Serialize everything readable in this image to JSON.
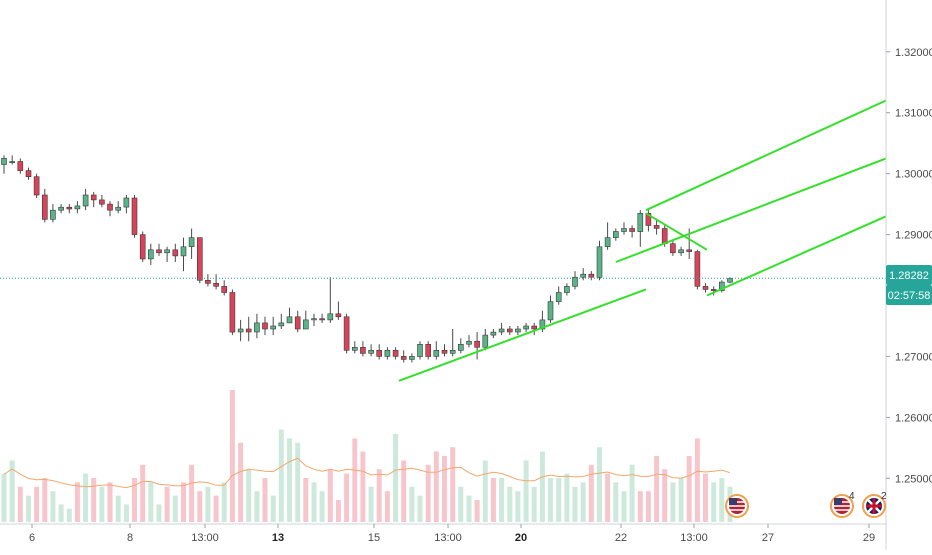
{
  "chart_data": {
    "type": "candlestick",
    "y_axis": {
      "ticks": [
        "1.32000",
        "1.31000",
        "1.30000",
        "1.29000",
        "1.28000",
        "1.27000",
        "1.26000",
        "1.25000"
      ],
      "tick_values": [
        1.32,
        1.31,
        1.3,
        1.29,
        1.28,
        1.27,
        1.26,
        1.25
      ],
      "range": [
        1.2425,
        1.3285
      ]
    },
    "x_axis": {
      "labels": [
        "6",
        "8",
        "13:00",
        "13",
        "15",
        "13:00",
        "20",
        "22",
        "13:00",
        "27",
        "29"
      ],
      "bold_labels": [
        "13",
        "20"
      ]
    },
    "last_price": {
      "value": "1.28282",
      "level": 1.28282,
      "color": "#26a69a"
    },
    "countdown": {
      "value": "02:57:58",
      "color": "#26a69a"
    },
    "up_color": "#5bb389",
    "down_color": "#d9435a",
    "pitchfork_color": "#33e02a",
    "volume_ma_color": "#f3a76b",
    "candles": [
      [
        1.3015,
        1.3025,
        1.303,
        1.3
      ],
      [
        1.302,
        1.302,
        1.303,
        1.3015
      ],
      [
        1.302,
        1.3005,
        1.3025,
        1.3
      ],
      [
        1.3005,
        1.2995,
        1.301,
        1.299
      ],
      [
        1.2995,
        1.2965,
        1.3,
        1.296
      ],
      [
        1.2965,
        1.2925,
        1.2975,
        1.292
      ],
      [
        1.2925,
        1.294,
        1.295,
        1.292
      ],
      [
        1.294,
        1.2945,
        1.295,
        1.2935
      ],
      [
        1.2945,
        1.2942,
        1.295,
        1.2935
      ],
      [
        1.2942,
        1.2947,
        1.2955,
        1.2935
      ],
      [
        1.2947,
        1.2965,
        1.2975,
        1.294
      ],
      [
        1.2965,
        1.2957,
        1.297,
        1.2945
      ],
      [
        1.2957,
        1.295,
        1.2965,
        1.2945
      ],
      [
        1.295,
        1.294,
        1.2955,
        1.293
      ],
      [
        1.294,
        1.2945,
        1.2955,
        1.2935
      ],
      [
        1.2945,
        1.296,
        1.2965,
        1.2935
      ],
      [
        1.296,
        1.29,
        1.2965,
        1.2895
      ],
      [
        1.29,
        1.286,
        1.2905,
        1.2855
      ],
      [
        1.286,
        1.2875,
        1.2885,
        1.285
      ],
      [
        1.2875,
        1.287,
        1.2885,
        1.2865
      ],
      [
        1.287,
        1.2875,
        1.288,
        1.2855
      ],
      [
        1.2875,
        1.2865,
        1.2885,
        1.2855
      ],
      [
        1.2865,
        1.288,
        1.2895,
        1.284
      ],
      [
        1.288,
        1.2895,
        1.291,
        1.286
      ],
      [
        1.2895,
        1.2825,
        1.2895,
        1.282
      ],
      [
        1.2825,
        1.282,
        1.2835,
        1.2815
      ],
      [
        1.282,
        1.2815,
        1.2835,
        1.281
      ],
      [
        1.2815,
        1.2805,
        1.2825,
        1.28
      ],
      [
        1.2805,
        1.274,
        1.281,
        1.2735
      ],
      [
        1.274,
        1.2745,
        1.276,
        1.2725
      ],
      [
        1.2745,
        1.274,
        1.2765,
        1.2725
      ],
      [
        1.274,
        1.2755,
        1.277,
        1.273
      ],
      [
        1.2755,
        1.2745,
        1.2765,
        1.2735
      ],
      [
        1.2745,
        1.275,
        1.2765,
        1.2735
      ],
      [
        1.275,
        1.2755,
        1.277,
        1.2745
      ],
      [
        1.2755,
        1.2765,
        1.278,
        1.2755
      ],
      [
        1.2765,
        1.2745,
        1.2775,
        1.274
      ],
      [
        1.2745,
        1.276,
        1.2775,
        1.2745
      ],
      [
        1.276,
        1.2762,
        1.277,
        1.275
      ],
      [
        1.2762,
        1.276,
        1.277,
        1.2755
      ],
      [
        1.276,
        1.277,
        1.283,
        1.2755
      ],
      [
        1.277,
        1.2765,
        1.279,
        1.276
      ],
      [
        1.2765,
        1.271,
        1.277,
        1.2705
      ],
      [
        1.271,
        1.2715,
        1.2725,
        1.2705
      ],
      [
        1.2715,
        1.2705,
        1.2725,
        1.27
      ],
      [
        1.2705,
        1.271,
        1.272,
        1.27
      ],
      [
        1.271,
        1.27,
        1.272,
        1.2695
      ],
      [
        1.27,
        1.271,
        1.2715,
        1.2695
      ],
      [
        1.271,
        1.27,
        1.2715,
        1.2695
      ],
      [
        1.27,
        1.2695,
        1.271,
        1.269
      ],
      [
        1.2695,
        1.27,
        1.2705,
        1.269
      ],
      [
        1.27,
        1.272,
        1.2725,
        1.2695
      ],
      [
        1.272,
        1.27,
        1.2725,
        1.2695
      ],
      [
        1.27,
        1.271,
        1.2725,
        1.2695
      ],
      [
        1.271,
        1.2705,
        1.272,
        1.27
      ],
      [
        1.2705,
        1.271,
        1.2745,
        1.27
      ],
      [
        1.271,
        1.272,
        1.273,
        1.2705
      ],
      [
        1.272,
        1.2725,
        1.2735,
        1.2715
      ],
      [
        1.2725,
        1.2715,
        1.274,
        1.2695
      ],
      [
        1.2715,
        1.2735,
        1.2745,
        1.271
      ],
      [
        1.2735,
        1.274,
        1.2745,
        1.273
      ],
      [
        1.274,
        1.2745,
        1.2755,
        1.2735
      ],
      [
        1.2745,
        1.274,
        1.275,
        1.2735
      ],
      [
        1.274,
        1.2745,
        1.275,
        1.2735
      ],
      [
        1.2745,
        1.275,
        1.2755,
        1.274
      ],
      [
        1.275,
        1.2745,
        1.2755,
        1.2735
      ],
      [
        1.2745,
        1.276,
        1.2775,
        1.274
      ],
      [
        1.276,
        1.279,
        1.28,
        1.2755
      ],
      [
        1.279,
        1.2805,
        1.2815,
        1.2785
      ],
      [
        1.2805,
        1.2815,
        1.282,
        1.28
      ],
      [
        1.2815,
        1.283,
        1.284,
        1.281
      ],
      [
        1.283,
        1.2835,
        1.2845,
        1.2825
      ],
      [
        1.2835,
        1.283,
        1.284,
        1.2825
      ],
      [
        1.283,
        1.288,
        1.289,
        1.2825
      ],
      [
        1.288,
        1.2895,
        1.292,
        1.2875
      ],
      [
        1.2895,
        1.2905,
        1.291,
        1.289
      ],
      [
        1.2905,
        1.291,
        1.292,
        1.29
      ],
      [
        1.291,
        1.2905,
        1.2915,
        1.2895
      ],
      [
        1.2905,
        1.2935,
        1.294,
        1.288
      ],
      [
        1.2935,
        1.2915,
        1.294,
        1.2905
      ],
      [
        1.2915,
        1.291,
        1.2925,
        1.29
      ],
      [
        1.291,
        1.2885,
        1.2915,
        1.288
      ],
      [
        1.2885,
        1.287,
        1.289,
        1.2865
      ],
      [
        1.287,
        1.2875,
        1.288,
        1.2865
      ],
      [
        1.2875,
        1.2872,
        1.291,
        1.286
      ],
      [
        1.2872,
        1.2815,
        1.2875,
        1.281
      ],
      [
        1.2815,
        1.281,
        1.282,
        1.2805
      ],
      [
        1.281,
        1.2808,
        1.2815,
        1.28
      ],
      [
        1.2808,
        1.2822,
        1.2825,
        1.2805
      ],
      [
        1.2822,
        1.2828,
        1.283,
        1.282
      ]
    ],
    "volume": [
      [
        11,
        "u"
      ],
      [
        14,
        "u"
      ],
      [
        8,
        "d"
      ],
      [
        6,
        "u"
      ],
      [
        8,
        "d"
      ],
      [
        10,
        "d"
      ],
      [
        7,
        "u"
      ],
      [
        4,
        "u"
      ],
      [
        3,
        "u"
      ],
      [
        9,
        "d"
      ],
      [
        11,
        "u"
      ],
      [
        10,
        "d"
      ],
      [
        8,
        "u"
      ],
      [
        9,
        "d"
      ],
      [
        6,
        "u"
      ],
      [
        4,
        "u"
      ],
      [
        10,
        "d"
      ],
      [
        13,
        "d"
      ],
      [
        9,
        "u"
      ],
      [
        4,
        "u"
      ],
      [
        8,
        "d"
      ],
      [
        6,
        "u"
      ],
      [
        9,
        "d"
      ],
      [
        13,
        "d"
      ],
      [
        7,
        "d"
      ],
      [
        8,
        "u"
      ],
      [
        6,
        "d"
      ],
      [
        9,
        "u"
      ],
      [
        30,
        "d"
      ],
      [
        18,
        "d"
      ],
      [
        12,
        "u"
      ],
      [
        7,
        "u"
      ],
      [
        10,
        "d"
      ],
      [
        6,
        "u"
      ],
      [
        21,
        "u"
      ],
      [
        19,
        "u"
      ],
      [
        18,
        "u"
      ],
      [
        10,
        "d"
      ],
      [
        9,
        "u"
      ],
      [
        7,
        "u"
      ],
      [
        12,
        "d"
      ],
      [
        5,
        "d"
      ],
      [
        11,
        "d"
      ],
      [
        19,
        "d"
      ],
      [
        16,
        "d"
      ],
      [
        8,
        "u"
      ],
      [
        12,
        "d"
      ],
      [
        7,
        "d"
      ],
      [
        20,
        "u"
      ],
      [
        14,
        "d"
      ],
      [
        8,
        "u"
      ],
      [
        6,
        "u"
      ],
      [
        13,
        "d"
      ],
      [
        16,
        "d"
      ],
      [
        15,
        "d"
      ],
      [
        17,
        "d"
      ],
      [
        8,
        "u"
      ],
      [
        6,
        "u"
      ],
      [
        5,
        "d"
      ],
      [
        14,
        "u"
      ],
      [
        10,
        "d"
      ],
      [
        10,
        "u"
      ],
      [
        8,
        "u"
      ],
      [
        7,
        "u"
      ],
      [
        14,
        "u"
      ],
      [
        8,
        "u"
      ],
      [
        16,
        "u"
      ],
      [
        10,
        "u"
      ],
      [
        10,
        "u"
      ],
      [
        11,
        "u"
      ],
      [
        8,
        "u"
      ],
      [
        9,
        "u"
      ],
      [
        13,
        "d"
      ],
      [
        17,
        "u"
      ],
      [
        11,
        "d"
      ],
      [
        9,
        "u"
      ],
      [
        7,
        "u"
      ],
      [
        13,
        "u"
      ],
      [
        7,
        "d"
      ],
      [
        7,
        "d"
      ],
      [
        15,
        "d"
      ],
      [
        12,
        "d"
      ],
      [
        9,
        "u"
      ],
      [
        10,
        "u"
      ],
      [
        15,
        "d"
      ],
      [
        19,
        "d"
      ],
      [
        11,
        "d"
      ],
      [
        9,
        "u"
      ],
      [
        10,
        "u"
      ],
      [
        8,
        "u"
      ]
    ],
    "pitchfork": {
      "pivot": [
        0,
        1.2935
      ],
      "handle_end": [
        0,
        1.2875
      ],
      "lines": [
        {
          "name": "upper",
          "from": [
            0,
            1.294
          ],
          "to": [
            1,
            1.312
          ]
        },
        {
          "name": "median",
          "from": [
            0,
            1.2855
          ],
          "to": [
            1,
            1.3025
          ]
        },
        {
          "name": "lower",
          "from": [
            0,
            1.28
          ],
          "to": [
            1,
            1.293
          ]
        },
        {
          "name": "lower-extension",
          "from": [
            0,
            1.266
          ],
          "to": [
            1,
            1.281
          ]
        }
      ]
    },
    "event_badges": [
      {
        "flag": "us",
        "count": ""
      },
      {
        "flag": "us",
        "count": "4"
      },
      {
        "flag": "uk",
        "count": "2"
      }
    ]
  }
}
